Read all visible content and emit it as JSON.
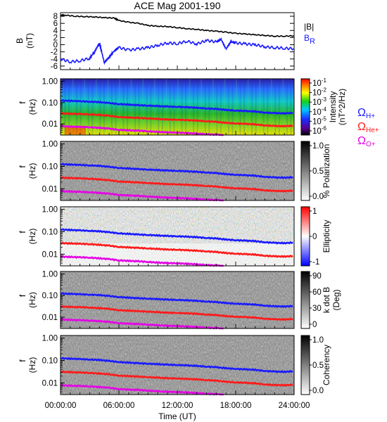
{
  "title": "ACE Mag 2001-190",
  "colors": {
    "black": "#000000",
    "blue": "#1a1aff",
    "red": "#ff1a1a",
    "magenta": "#e600e6"
  },
  "x_axis": {
    "ticks": [
      "00:00:00",
      "06:00:00",
      "12:00:00",
      "18:00:00",
      "24:00:00"
    ],
    "label": "Time (UT)",
    "range_hours": [
      0,
      24
    ]
  },
  "chart_data": [
    {
      "type": "line",
      "ylabel": "B (nT)",
      "ylim": [
        -7,
        9
      ],
      "yticks": [
        "8",
        "6",
        "4",
        "2",
        "0",
        "-2",
        "-4",
        "-6"
      ],
      "ytick_values": [
        8,
        6,
        4,
        2,
        0,
        -2,
        -4,
        -6
      ],
      "legend": [
        "|B|",
        "B_R"
      ],
      "series": [
        {
          "name": "|B|",
          "color": "black",
          "x": [
            0,
            0.5,
            1.5,
            2.5,
            3.5,
            4.5,
            5.5,
            6,
            7,
            8,
            9,
            10,
            11,
            12,
            13,
            14,
            15,
            16,
            17,
            18,
            19,
            20,
            21,
            22,
            23,
            24
          ],
          "y": [
            8.2,
            8.3,
            8.0,
            7.9,
            7.8,
            7.6,
            7.5,
            6.8,
            6.3,
            6.0,
            5.4,
            5.2,
            5.1,
            4.8,
            4.5,
            4.3,
            4.0,
            3.8,
            3.5,
            3.2,
            3.0,
            2.8,
            2.6,
            2.4,
            2.4,
            2.5
          ]
        },
        {
          "name": "B_R",
          "color": "blue",
          "x": [
            0,
            1,
            2,
            3,
            3.5,
            4,
            4.5,
            5,
            5.5,
            6,
            7,
            8,
            9,
            10,
            11,
            12,
            13,
            14,
            15,
            16,
            16.5,
            17,
            17.5,
            18,
            19,
            20,
            21,
            22,
            23,
            24
          ],
          "y": [
            -4.0,
            -4.8,
            -4.5,
            -3.8,
            -2.0,
            0.5,
            -5.0,
            -3.5,
            -1.8,
            -0.8,
            -1.5,
            -1.2,
            -0.8,
            -0.2,
            0.5,
            0.3,
            1.0,
            0.2,
            1.2,
            0.8,
            1.5,
            -1.2,
            0.8,
            0.5,
            0.2,
            0.0,
            -0.6,
            -0.8,
            -1.0,
            -1.1
          ]
        }
      ]
    },
    {
      "type": "heatmap",
      "ylabel": "f (Hz)",
      "yscale": "log",
      "ylim": [
        0.003,
        1.3
      ],
      "yticks": [
        "1.00",
        "0.10",
        "0.01"
      ],
      "colorbar": {
        "label": "Intensity (nT^2/Hz)",
        "scale": "log",
        "ticks": [
          "10^-1",
          "10^-2",
          "10^-3",
          "10^-4",
          "10^-5",
          "10^-6"
        ],
        "range": [
          1e-07,
          1
        ]
      },
      "gyrofrequency_legend": [
        "Ω H+",
        "Ω He+",
        "Ω O+"
      ]
    },
    {
      "type": "heatmap",
      "ylabel": "f (Hz)",
      "yscale": "log",
      "ylim": [
        0.003,
        1.3
      ],
      "yticks": [
        "1.00",
        "0.10",
        "0.01"
      ],
      "colorbar": {
        "label": "% Polarization",
        "ticks": [
          "1.0",
          "0.5",
          "0.0"
        ],
        "range": [
          0,
          1
        ]
      }
    },
    {
      "type": "heatmap",
      "ylabel": "f (Hz)",
      "yscale": "log",
      "ylim": [
        0.003,
        1.3
      ],
      "yticks": [
        "1.00",
        "0.10",
        "0.01"
      ],
      "colorbar": {
        "label": "Ellipticity",
        "ticks": [
          "1",
          "0",
          "-1"
        ],
        "range": [
          -1,
          1
        ]
      }
    },
    {
      "type": "heatmap",
      "ylabel": "f (Hz)",
      "yscale": "log",
      "ylim": [
        0.003,
        1.3
      ],
      "yticks": [
        "1.00",
        "0.10",
        "0.01"
      ],
      "colorbar": {
        "label": "k dot B (Deg)",
        "ticks": [
          "90",
          "60",
          "30",
          "0"
        ],
        "range": [
          0,
          90
        ]
      }
    },
    {
      "type": "heatmap",
      "ylabel": "f (Hz)",
      "yscale": "log",
      "ylim": [
        0.003,
        1.3
      ],
      "yticks": [
        "1.00",
        "0.10",
        "0.01"
      ],
      "colorbar": {
        "label": "Coherency",
        "ticks": [
          "1.0",
          "0.5",
          "0.0"
        ],
        "range": [
          0,
          1
        ]
      }
    }
  ],
  "gyro_lines": {
    "x": [
      0,
      1,
      2,
      3,
      4,
      5,
      6,
      7,
      8,
      9,
      10,
      11,
      12,
      13,
      14,
      15,
      16,
      17,
      18,
      19,
      20,
      21,
      22,
      23,
      24
    ],
    "H+": [
      0.125,
      0.12,
      0.115,
      0.11,
      0.105,
      0.095,
      0.085,
      0.08,
      0.075,
      0.072,
      0.068,
      0.065,
      0.063,
      0.06,
      0.057,
      0.053,
      0.05,
      0.045,
      0.042,
      0.04,
      0.038,
      0.034,
      0.032,
      0.031,
      0.033
    ],
    "He+": [
      0.031,
      0.03,
      0.029,
      0.028,
      0.026,
      0.024,
      0.021,
      0.02,
      0.019,
      0.018,
      0.017,
      0.016,
      0.0158,
      0.015,
      0.0142,
      0.0133,
      0.0125,
      0.0112,
      0.0105,
      0.01,
      0.0095,
      0.0085,
      0.008,
      0.0078,
      0.0083
    ],
    "O+": [
      0.0078,
      0.0075,
      0.0072,
      0.007,
      0.0065,
      0.006,
      0.0053,
      0.005,
      0.0048,
      0.0045,
      0.0042,
      0.004,
      0.0039,
      0.0037,
      0.0035,
      0.0033,
      0.0031,
      0.0028,
      0.0026,
      0.0025,
      0.0024,
      0.0021,
      0.002,
      0.0019,
      0.0021
    ]
  }
}
